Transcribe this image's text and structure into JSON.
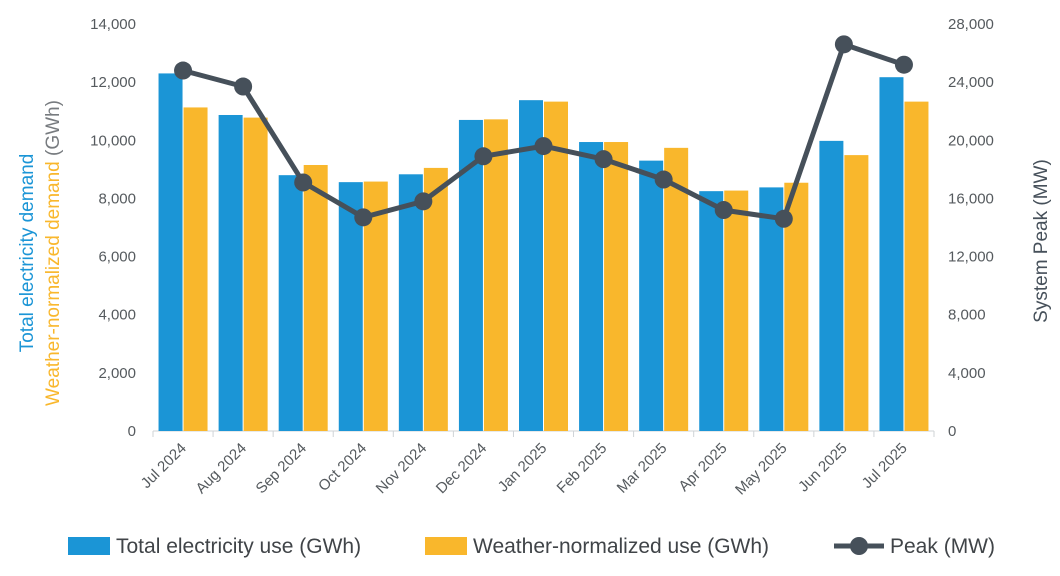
{
  "chart_data": {
    "type": "bar",
    "categories": [
      "Jul 2024",
      "Aug 2024",
      "Sep 2024",
      "Oct 2024",
      "Nov 2024",
      "Dec 2024",
      "Jan 2025",
      "Feb 2025",
      "Mar 2025",
      "Apr 2025",
      "May 2025",
      "Jun 2025",
      "Jul 2025"
    ],
    "series": [
      {
        "name": "Total electricity use (GWh)",
        "type": "bar",
        "axis": "left",
        "color": "#1b95d6",
        "values": [
          12300,
          10870,
          8800,
          8560,
          8830,
          10700,
          11380,
          9940,
          9300,
          8250,
          8380,
          9980,
          12170
        ]
      },
      {
        "name": "Weather-normalized use (GWh)",
        "type": "bar",
        "axis": "left",
        "color": "#f9b72c",
        "values": [
          11130,
          10780,
          9150,
          8580,
          9050,
          10720,
          11330,
          9940,
          9740,
          8270,
          8540,
          9490,
          11330
        ]
      },
      {
        "name": "Peak (MW)",
        "type": "line",
        "axis": "right",
        "color": "#46505a",
        "values": [
          24800,
          23700,
          17100,
          14700,
          15800,
          18900,
          19600,
          18700,
          17300,
          15200,
          14600,
          26600,
          25200
        ]
      }
    ],
    "y_left": {
      "label_line1": "Total electricity demand",
      "label_line2_main": "Weather-normalized demand",
      "label_line2_unit": " (GWh)",
      "range": [
        0,
        14000
      ],
      "ticks": [
        "0",
        "2,000",
        "4,000",
        "6,000",
        "8,000",
        "10,000",
        "12,000",
        "14,000"
      ],
      "tick_values": [
        0,
        2000,
        4000,
        6000,
        8000,
        10000,
        12000,
        14000
      ]
    },
    "y_right": {
      "label_main": "System Peak",
      "label_unit": " (MW)",
      "range": [
        0,
        28000
      ],
      "ticks": [
        "0",
        "4,000",
        "8,000",
        "12,000",
        "16,000",
        "20,000",
        "24,000",
        "28,000"
      ],
      "tick_values": [
        0,
        4000,
        8000,
        12000,
        16000,
        20000,
        24000,
        28000
      ]
    },
    "grid": false,
    "legend_position": "bottom",
    "colors": {
      "total": "#1b95d6",
      "normalized": "#f9b72c",
      "peak": "#46505a",
      "axis_line": "#cfd3d6",
      "tick_text": "#555a5e",
      "normalized_unit": "#777b7f"
    }
  }
}
